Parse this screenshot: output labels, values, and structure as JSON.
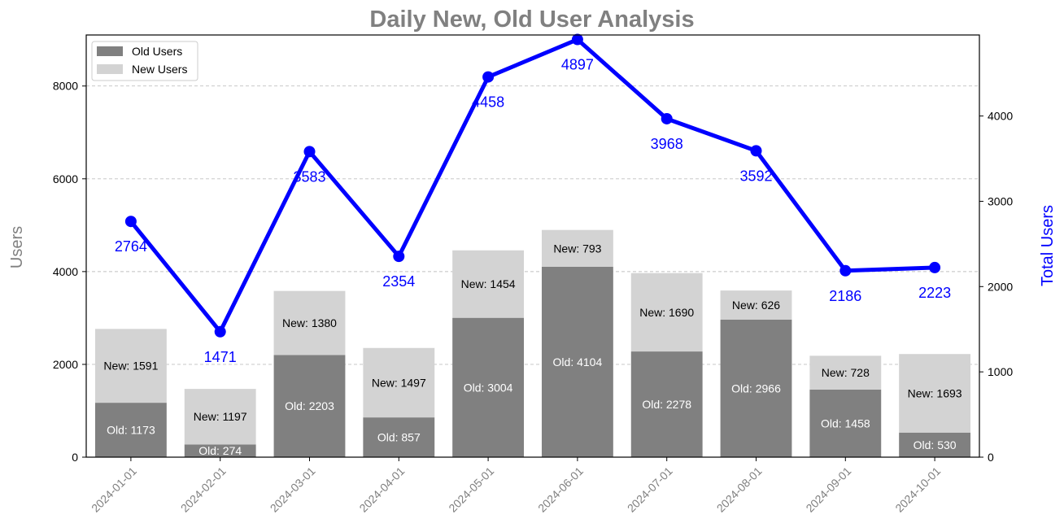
{
  "chart_data": {
    "type": "bar",
    "title": "Daily New, Old User Analysis",
    "ylabel": "Users",
    "ylabel_right": "Total Users",
    "xlabel": "",
    "categories": [
      "2024-01-01",
      "2024-02-01",
      "2024-03-01",
      "2024-04-01",
      "2024-05-01",
      "2024-06-01",
      "2024-07-01",
      "2024-08-01",
      "2024-09-01",
      "2024-10-01"
    ],
    "series": [
      {
        "name": "Old Users",
        "kind": "stacked-bar",
        "values": [
          1173,
          274,
          2203,
          857,
          3004,
          4104,
          2278,
          2966,
          1458,
          530
        ],
        "label_prefix": "Old: "
      },
      {
        "name": "New Users",
        "kind": "stacked-bar",
        "values": [
          1591,
          1197,
          1380,
          1497,
          1454,
          793,
          1690,
          626,
          728,
          1693
        ],
        "label_prefix": "New: "
      },
      {
        "name": "Total Users",
        "kind": "line",
        "axis": "right",
        "values": [
          2764,
          1471,
          3583,
          2354,
          4458,
          4897,
          3968,
          3592,
          2186,
          2223
        ]
      }
    ],
    "ylim": [
      0,
      9100
    ],
    "ylim_right": [
      0,
      4950
    ],
    "yticks": [
      "0",
      "2000",
      "4000",
      "6000",
      "8000"
    ],
    "yticks_right": [
      "0",
      "1000",
      "2000",
      "3000",
      "4000"
    ],
    "grid": "horizontal dashed",
    "legend_position": "top-left",
    "colors": {
      "old": "#808080",
      "new": "#d3d3d3",
      "line": "#0000ff",
      "title": "#808080",
      "ylabel": "#808080",
      "ylabel_right": "#0000ff",
      "grid": "#c0c0c0"
    }
  }
}
